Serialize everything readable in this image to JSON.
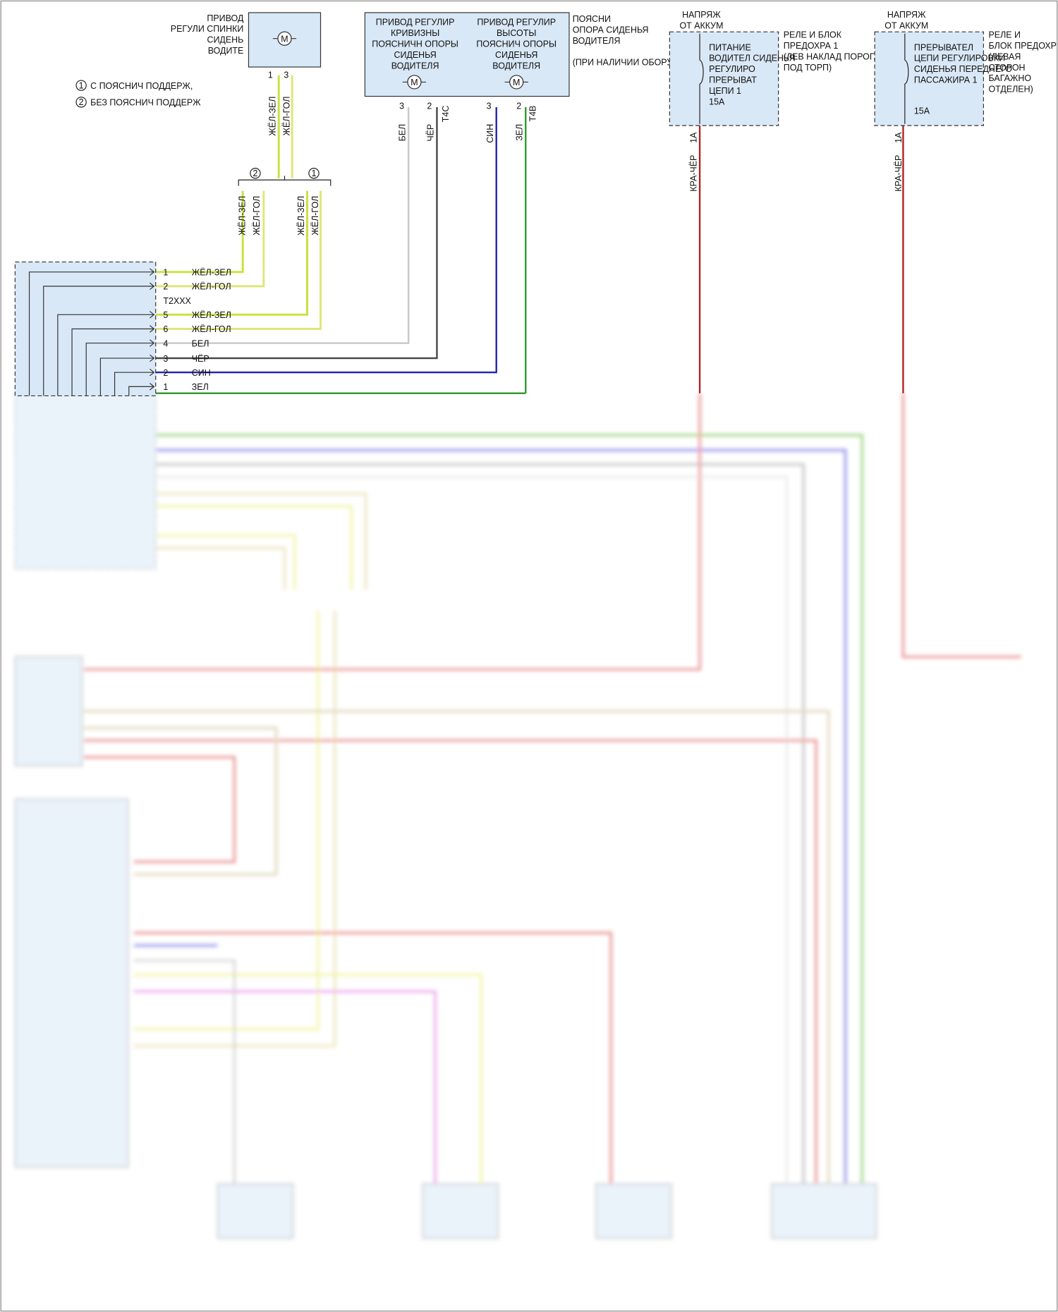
{
  "legend": [
    {
      "num": "1",
      "text": "С ПОЯСНИЧ ПОДДЕРЖ,"
    },
    {
      "num": "2",
      "text": "БЕЗ ПОЯСНИЧ ПОДДЕРЖ"
    }
  ],
  "backrest_motor": {
    "label": [
      "ПРИВОД",
      "РЕГУЛИ СПИНКИ",
      "СИДЕНЬ",
      "ВОДИТЕ"
    ],
    "motor": "M",
    "pins": [
      "1",
      "3"
    ],
    "wires": [
      "ЖЁЛ-ЗЕЛ",
      "ЖЁЛ-ГОЛ"
    ]
  },
  "splice": {
    "options": [
      "2",
      "1"
    ],
    "wires": [
      "ЖЁЛ-ЗЕЛ",
      "ЖЁЛ-ГОЛ",
      "ЖЁЛ-ЗЕЛ",
      "ЖЁЛ-ГОЛ"
    ]
  },
  "lumbar": {
    "curvature": [
      "ПРИВОД РЕГУЛИР",
      "КРИВИЗНЫ",
      "ПОЯСНИЧН ОПОРЫ",
      "СИДЕНЬЯ",
      "ВОДИТЕЛЯ"
    ],
    "height": [
      "ПРИВОД РЕГУЛИР",
      "ВЫСОТЫ",
      "ПОЯСНИЧ ОПОРЫ",
      "СИДЕНЬЯ",
      "ВОДИТЕЛЯ"
    ],
    "note": [
      "ПОЯСНИ",
      "ОПОРА СИДЕНЬЯ",
      "ВОДИТЕЛЯ"
    ],
    "option": "(ПРИ НАЛИЧИИ ОБОРУД)",
    "motor": "M",
    "pins": [
      "3",
      "2",
      "3",
      "2"
    ],
    "connectors": [
      "T4C",
      "T4B"
    ],
    "wires": [
      "БЕЛ",
      "ЧЁР",
      "СИН",
      "ЗЕЛ"
    ]
  },
  "fuse1": {
    "source": [
      "НАПРЯЖ",
      "ОТ АККУМ"
    ],
    "label": [
      "ПИТАНИЕ",
      "ВОДИТЕЛ СИДЕНЬЯ",
      "РЕГУЛИРО",
      "ПРЕРЫВАТ",
      "ЦЕПИ 1",
      "15А"
    ],
    "location": [
      "РЕЛЕ И БЛОК",
      "ПРЕДОХРА 1",
      "(ЛЕВ НАКЛАД ПОРОГА",
      "ПОД ТОРП)"
    ],
    "pin": "1А",
    "wire": "КРА-ЧЁР"
  },
  "fuse2": {
    "source": [
      "НАПРЯЖ",
      "ОТ АККУМ"
    ],
    "label": [
      "ПРЕРЫВАТЕЛ",
      "ЦЕПИ РЕГУЛИРОВКИ",
      "СИДЕНЬЯ ПЕРЕДНЕГО",
      "ПАССАЖИРА 1"
    ],
    "rating": "15А",
    "location": [
      "РЕЛЕ И",
      "БЛОК ПРЕДОХР",
      "(ЛЕВАЯ",
      "СТОРОН",
      "БАГАЖНО",
      "ОТДЕЛЕН)"
    ],
    "pin": "1А",
    "wire": "КРА-ЧЁР"
  },
  "module": {
    "connector": "T2XXX",
    "rows": [
      {
        "pin": "1",
        "wire": "ЖЁЛ-ЗЕЛ"
      },
      {
        "pin": "2",
        "wire": "ЖЁЛ-ГОЛ"
      },
      {
        "pin": "5",
        "wire": "ЖЁЛ-ЗЕЛ"
      },
      {
        "pin": "6",
        "wire": "ЖЁЛ-ГОЛ"
      },
      {
        "pin": "4",
        "wire": "БЕЛ"
      },
      {
        "pin": "3",
        "wire": "ЧЁР"
      },
      {
        "pin": "2",
        "wire": "СИН"
      },
      {
        "pin": "1",
        "wire": "ЗЕЛ"
      }
    ]
  }
}
